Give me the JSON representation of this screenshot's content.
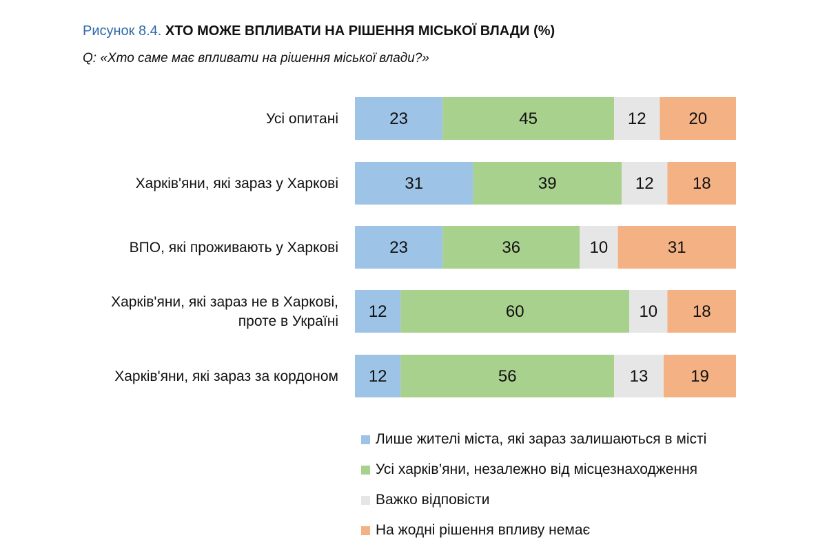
{
  "figure": {
    "prefix": "Рисунок 8.4.",
    "title": "ХТО МОЖЕ ВПЛИВАТИ НА РІШЕННЯ МІСЬКОЇ ВЛАДИ (%)",
    "question": "Q: «Хто саме має впливати на рішення міської влади?»"
  },
  "chart_data": {
    "type": "bar",
    "orientation": "horizontal",
    "stacked": true,
    "normalized": "100%",
    "title": "ХТО МОЖЕ ВПЛИВАТИ НА РІШЕННЯ МІСЬКОЇ ВЛАДИ (%)",
    "categories": [
      [
        "Усі опитані"
      ],
      [
        "Харків'яни, які зараз у Харкові"
      ],
      [
        "ВПО, які проживають у Харкові"
      ],
      [
        "Харків'яни, які зараз не в Харкові,",
        "проте в Україні"
      ],
      [
        "Харків'яни, які зараз за кордоном"
      ]
    ],
    "series": [
      {
        "name": "Лише жителі міста, які зараз залишаються в місті",
        "color": "#9dc3e6",
        "values": [
          23,
          31,
          23,
          12,
          12
        ]
      },
      {
        "name": "Усі харків’яни, незалежно від місцезнаходження",
        "color": "#a9d18e",
        "values": [
          45,
          39,
          36,
          60,
          56
        ]
      },
      {
        "name": "Важко відповісти",
        "color": "#e7e6e6",
        "values": [
          12,
          12,
          10,
          10,
          13
        ]
      },
      {
        "name": "На жодні рішення впливу немає",
        "color": "#f4b183",
        "values": [
          20,
          18,
          31,
          18,
          19
        ]
      }
    ],
    "data_labels": true,
    "grid": false,
    "legend_position": "bottom-right"
  }
}
